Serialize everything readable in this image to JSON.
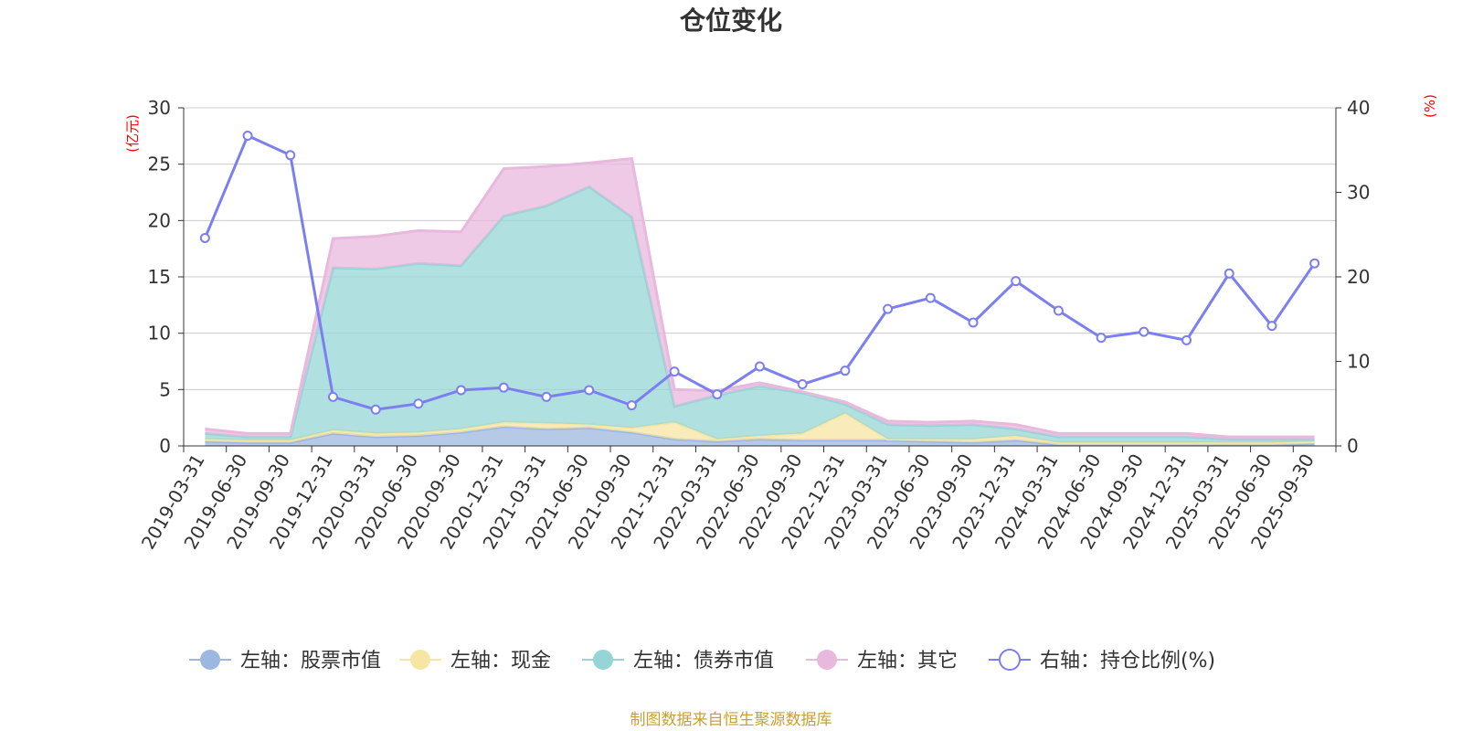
{
  "chart_data": {
    "type": "area",
    "title": "仓位变化",
    "left_unit": "(亿元)",
    "right_unit": "(%)",
    "left_ylim": [
      0,
      30
    ],
    "left_ticks": [
      "0",
      "5",
      "10",
      "15",
      "20",
      "25",
      "30"
    ],
    "right_ylim": [
      0,
      40
    ],
    "right_ticks": [
      "0",
      "10",
      "20",
      "30",
      "40"
    ],
    "categories": [
      "2019-03-31",
      "2019-06-30",
      "2019-09-30",
      "2019-12-31",
      "2020-03-31",
      "2020-06-30",
      "2020-09-30",
      "2020-12-31",
      "2021-03-31",
      "2021-06-30",
      "2021-09-30",
      "2021-12-31",
      "2022-03-31",
      "2022-06-30",
      "2022-09-30",
      "2022-12-31",
      "2023-03-31",
      "2023-06-30",
      "2023-09-30",
      "2023-12-31",
      "2024-03-31",
      "2024-06-30",
      "2024-09-30",
      "2024-12-31",
      "2025-03-31",
      "2025-06-30",
      "2025-09-30"
    ],
    "stacked_series": [
      {
        "name": "左轴：股票市值",
        "color": "#9db8e0",
        "values": [
          0.4,
          0.3,
          0.3,
          1.1,
          0.8,
          0.9,
          1.2,
          1.7,
          1.5,
          1.6,
          1.2,
          0.6,
          0.4,
          0.6,
          0.5,
          0.5,
          0.5,
          0.4,
          0.3,
          0.5,
          0.1,
          0.1,
          0.1,
          0.1,
          0.1,
          0.1,
          0.2
        ]
      },
      {
        "name": "左轴：现金",
        "color": "#f7e6a3",
        "values": [
          0.2,
          0.2,
          0.2,
          0.3,
          0.3,
          0.3,
          0.3,
          0.4,
          0.5,
          0.3,
          0.4,
          1.5,
          0.2,
          0.3,
          0.6,
          2.4,
          0.1,
          0.2,
          0.3,
          0.4,
          0.2,
          0.2,
          0.2,
          0.2,
          0.2,
          0.2,
          0.2
        ]
      },
      {
        "name": "左轴：债券市值",
        "color": "#95d5d6",
        "values": [
          0.5,
          0.3,
          0.3,
          14.4,
          14.6,
          15.0,
          14.5,
          18.3,
          19.3,
          21.1,
          18.7,
          1.4,
          3.9,
          4.4,
          3.6,
          0.8,
          1.3,
          1.2,
          1.3,
          0.6,
          0.5,
          0.5,
          0.5,
          0.5,
          0.3,
          0.3,
          0.2
        ]
      },
      {
        "name": "左轴：其它",
        "color": "#e8b8dd",
        "values": [
          0.4,
          0.3,
          0.3,
          2.6,
          2.9,
          2.9,
          3.0,
          4.2,
          3.5,
          2.1,
          5.2,
          1.5,
          0.4,
          0.3,
          0.1,
          0.2,
          0.3,
          0.3,
          0.3,
          0.4,
          0.3,
          0.3,
          0.3,
          0.3,
          0.2,
          0.2,
          0.2
        ]
      }
    ],
    "line_series": {
      "name": "右轴：持仓比例(%)",
      "color": "#7b7ff0",
      "values": [
        24.6,
        36.7,
        34.4,
        5.8,
        4.3,
        5.0,
        6.6,
        6.9,
        5.8,
        6.6,
        4.8,
        8.8,
        6.1,
        9.4,
        7.3,
        8.9,
        16.2,
        17.5,
        14.6,
        19.5,
        16.0,
        12.8,
        13.5,
        12.5,
        20.4,
        14.2,
        21.6
      ]
    },
    "source_note": "制图数据来自恒生聚源数据库"
  }
}
